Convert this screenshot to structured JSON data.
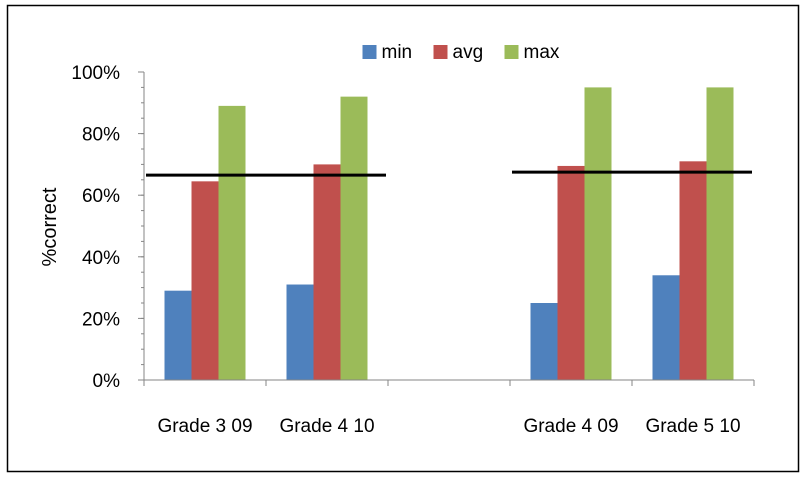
{
  "chart_data": {
    "type": "bar",
    "title": "",
    "xlabel": "",
    "ylabel": "%correct",
    "ylim": [
      0,
      100
    ],
    "yticks": [
      "0%",
      "20%",
      "40%",
      "60%",
      "80%",
      "100%"
    ],
    "ytick_values": [
      0,
      20,
      40,
      60,
      80,
      100
    ],
    "categories": [
      "Grade 3 09",
      "Grade 4 10",
      "",
      "Grade 4 09",
      "Grade 5 10"
    ],
    "series": [
      {
        "name": "min",
        "color": "#4f81bd",
        "values": [
          29,
          31,
          null,
          25,
          34
        ]
      },
      {
        "name": "avg",
        "color": "#c0504d",
        "values": [
          64.5,
          70,
          null,
          69.5,
          71
        ]
      },
      {
        "name": "max",
        "color": "#9bbb59",
        "values": [
          89,
          92,
          null,
          95,
          95
        ]
      }
    ],
    "reference_lines": [
      {
        "value": 66.5,
        "from_category": 0,
        "to_category": 1,
        "color": "#000000"
      },
      {
        "value": 67.5,
        "from_category": 3,
        "to_category": 4,
        "color": "#000000"
      }
    ],
    "legend_position": "top",
    "grid": false
  }
}
